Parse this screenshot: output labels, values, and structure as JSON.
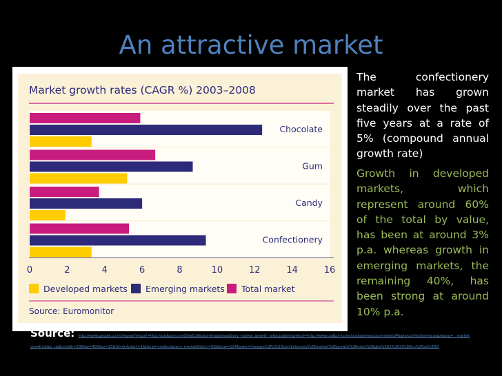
{
  "slide": {
    "title": "An attractive market",
    "paragraph1": "The confectionery market has grown steadily over the past five years at a rate of 5% (compound annual growth rate)",
    "paragraph2": "Growth in developed markets, which represent around 60% of the total by value, has been at around 3% p.a. whereas growth in emerging markets, the remaining 40%, has been strong at around 10% p.a.",
    "source_label": "Source:",
    "source_url": "http://www.google.co.in/imgres?imgurl=http://cadbury.com/SiteCollectionImages/cadbury_market_growth_rates.jpg&imgrefurl=http://www.cadbury.com/ourbusiness/ourmarkets/Pages/confectionery.aspx&usg=__marketgrowthrates_cadbury&h=300&w=400&sz=20&hl=en&start=1&tbnid=confectionery_market&tbnh=93&tbnw=124&prev=/images%3Fq%3Dconfectionery%2Bmarket%2Bgrowth%2Brates%26gbv%3D2%26hl%3Den%26sa%3DG"
  },
  "colors": {
    "developed": "#ffcc00",
    "emerging": "#2e2a7a",
    "total": "#c81d7e",
    "panel_bg": "#fbf1d7",
    "title_color": "#4f81bd",
    "accent_green": "#9bbb59"
  },
  "chart_data": {
    "type": "bar",
    "orientation": "horizontal",
    "title": "Market growth rates (CAGR %) 2003–2008",
    "categories": [
      "Chocolate",
      "Gum",
      "Candy",
      "Confectionery"
    ],
    "series": [
      {
        "name": "Total market",
        "values": [
          5.9,
          6.7,
          3.7,
          5.3
        ]
      },
      {
        "name": "Emerging markets",
        "values": [
          12.4,
          8.7,
          6.0,
          9.4
        ]
      },
      {
        "name": "Developed markets",
        "values": [
          3.3,
          5.2,
          1.9,
          3.3
        ]
      }
    ],
    "legend_order": [
      "Developed markets",
      "Emerging markets",
      "Total market"
    ],
    "xlim": [
      0,
      16
    ],
    "xticks": [
      "0",
      "2",
      "4",
      "6",
      "8",
      "10",
      "12",
      "14",
      "16"
    ],
    "legend_position": "bottom",
    "grid": false,
    "source": "Source: Euromonitor"
  }
}
